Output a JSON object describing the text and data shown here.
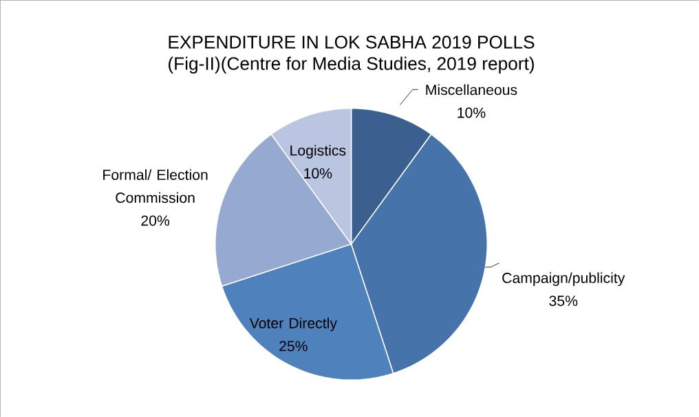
{
  "chart_data": {
    "type": "pie",
    "title": "EXPENDITURE IN LOK SABHA 2019 POLLS",
    "subtitle": "(Fig-II)(Centre for Media Studies, 2019 report)",
    "categories": [
      "Miscellaneous",
      "Campaign/publicity",
      "Voter Directly",
      "Formal/ Election Commission",
      "Logistics"
    ],
    "values": [
      10,
      35,
      25,
      20,
      10
    ],
    "value_labels": [
      "10%",
      "35%",
      "25%",
      "20%",
      "10%"
    ],
    "colors": [
      "#3b6090",
      "#4573aa",
      "#4f81bd",
      "#95a9d1",
      "#b9c5e1"
    ]
  }
}
